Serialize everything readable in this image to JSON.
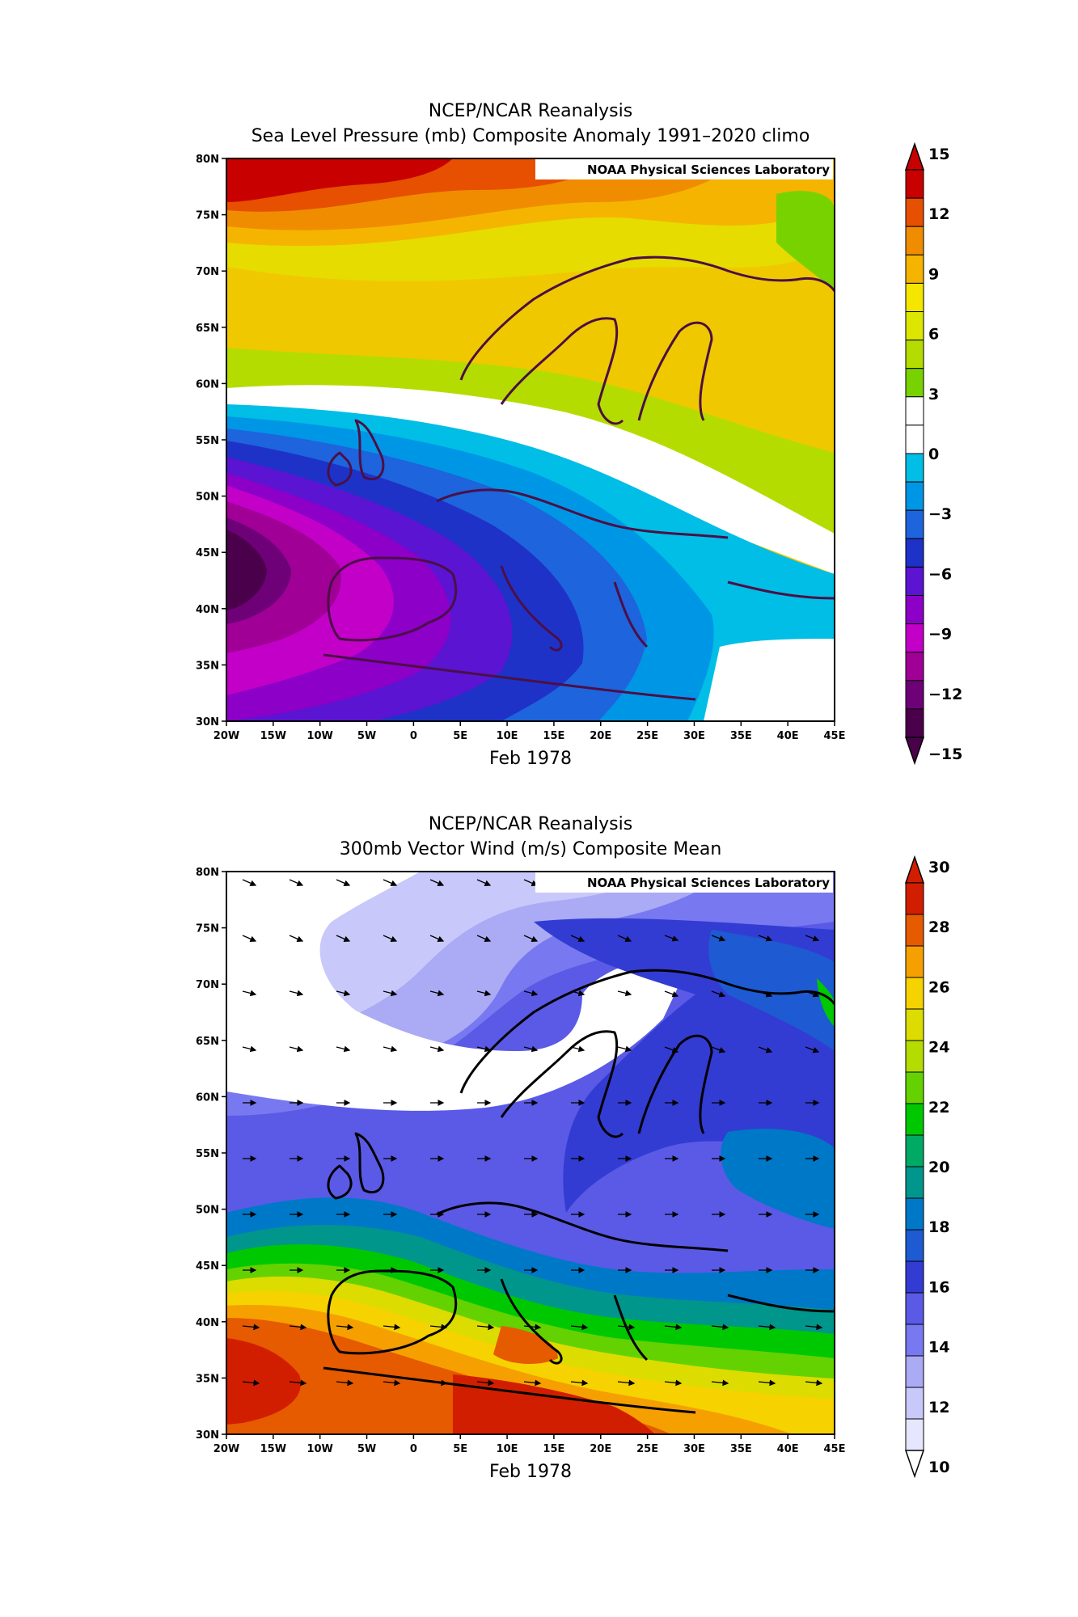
{
  "panels": [
    {
      "title1": "NCEP/NCAR Reanalysis",
      "title2": "Sea Level Pressure (mb) Composite Anomaly 1991–2020 climo",
      "watermark": "NOAA Physical Sciences Laboratory",
      "date": "Feb 1978",
      "lat_ticks": [
        "80N",
        "75N",
        "70N",
        "65N",
        "60N",
        "55N",
        "50N",
        "45N",
        "40N",
        "35N",
        "30N"
      ],
      "lon_ticks": [
        "20W",
        "15W",
        "10W",
        "5W",
        "0",
        "5E",
        "10E",
        "15E",
        "20E",
        "25E",
        "30E",
        "35E",
        "40E",
        "45E"
      ],
      "colorbar": {
        "labels": [
          "15",
          "12",
          "9",
          "6",
          "3",
          "0",
          "−3",
          "−6",
          "−9",
          "−12",
          "−15"
        ],
        "colors_top_to_bottom": [
          "#c80000",
          "#e65000",
          "#f08c00",
          "#f5b400",
          "#f5e600",
          "#dce600",
          "#b4dc00",
          "#78d200",
          "#ffffff",
          "#ffffff",
          "#00bee6",
          "#0096e6",
          "#1e64dc",
          "#1e32c8",
          "#5a14d2",
          "#8c00c8",
          "#c300c8",
          "#a00096",
          "#6e0078",
          "#4b004b"
        ]
      }
    },
    {
      "title1": "NCEP/NCAR Reanalysis",
      "title2": "300mb Vector Wind (m/s) Composite Mean",
      "watermark": "NOAA Physical Sciences Laboratory",
      "date": "Feb 1978",
      "lat_ticks": [
        "80N",
        "75N",
        "70N",
        "65N",
        "60N",
        "55N",
        "50N",
        "45N",
        "40N",
        "35N",
        "30N"
      ],
      "lon_ticks": [
        "20W",
        "15W",
        "10W",
        "5W",
        "0",
        "5E",
        "10E",
        "15E",
        "20E",
        "25E",
        "30E",
        "35E",
        "40E",
        "45E"
      ],
      "colorbar": {
        "labels": [
          "30",
          "28",
          "26",
          "24",
          "22",
          "20",
          "18",
          "16",
          "14",
          "12",
          "10"
        ],
        "colors_top_to_bottom": [
          "#d21e00",
          "#e65a00",
          "#f5a000",
          "#f5d200",
          "#dcdc00",
          "#b4dc00",
          "#64d200",
          "#00c800",
          "#00aa64",
          "#00968c",
          "#0078c8",
          "#1e5ad2",
          "#323cd2",
          "#5a5ae6",
          "#7878f0",
          "#aaaaf5",
          "#c8c8fa",
          "#e6e6ff"
        ]
      }
    }
  ]
}
